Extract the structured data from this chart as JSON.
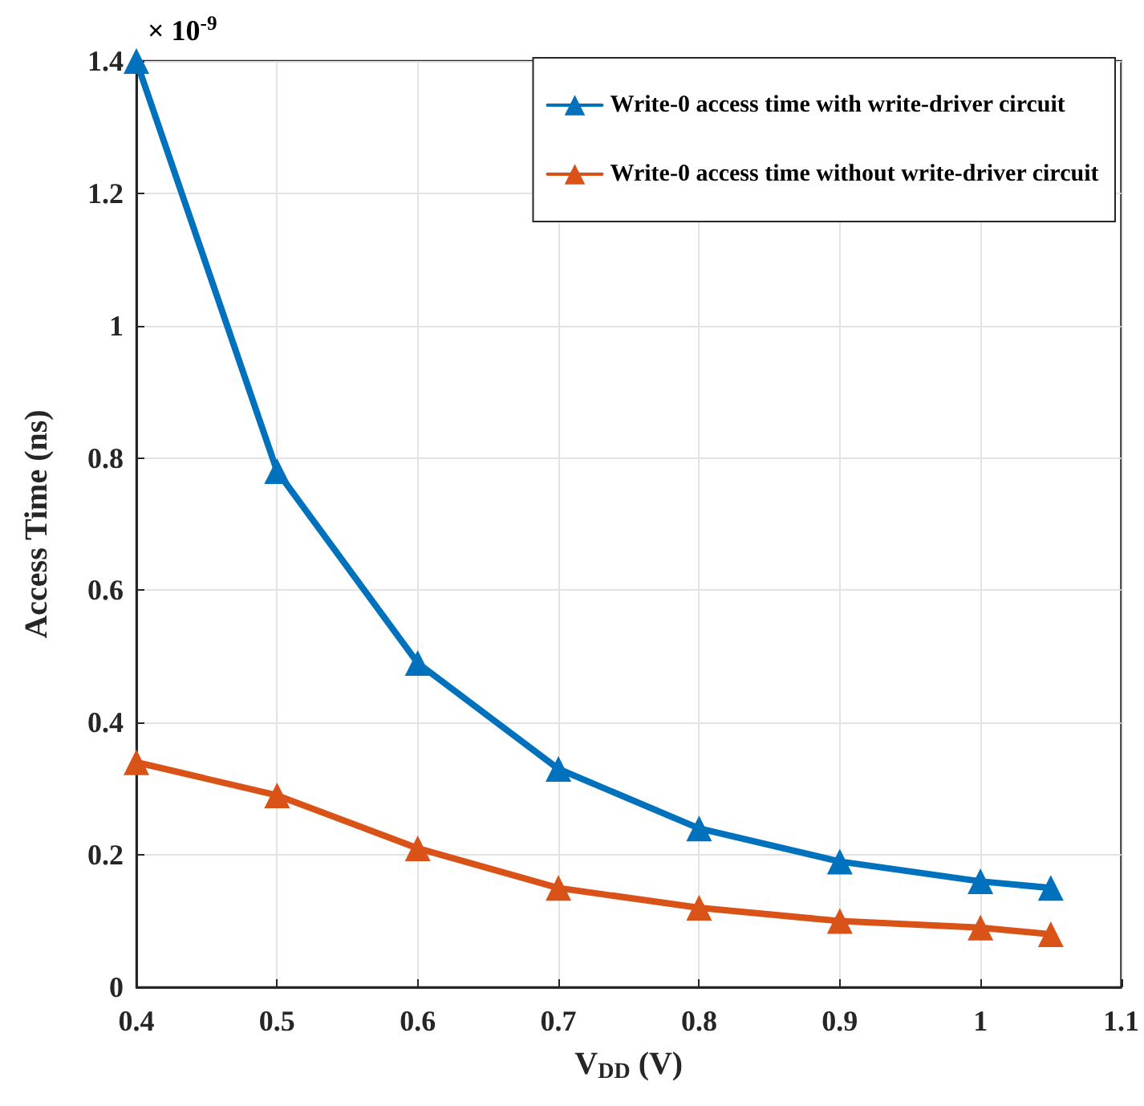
{
  "chart_data": {
    "type": "line",
    "xlabel": "V$_{DD}$ (V)",
    "ylabel": "Access Time (ns)",
    "annotations": [
      "× 10$^{-9}$"
    ],
    "x": [
      0.4,
      0.5,
      0.6,
      0.7,
      0.8,
      0.9,
      1.0,
      1.05
    ],
    "series": [
      {
        "name": "Write-0 access time with write-driver circuit",
        "color": "#0072bd",
        "values": [
          1.4,
          0.78,
          0.49,
          0.33,
          0.24,
          0.19,
          0.16,
          0.15
        ]
      },
      {
        "name": "Write-0 access time without write-driver circuit",
        "color": "#d95319",
        "values": [
          0.34,
          0.29,
          0.21,
          0.15,
          0.12,
          0.1,
          0.09,
          0.08
        ]
      }
    ],
    "xlim": [
      0.4,
      1.1
    ],
    "xticks": [
      0.4,
      0.5,
      0.6,
      0.7,
      0.8,
      0.9,
      1,
      1.1
    ],
    "ylim": [
      0,
      1.4
    ],
    "yticks": [
      0,
      0.2,
      0.4,
      0.6,
      0.8,
      1,
      1.2,
      1.4
    ],
    "grid": true,
    "legend": "top right",
    "marker": "triangle",
    "line_style": "solid"
  }
}
